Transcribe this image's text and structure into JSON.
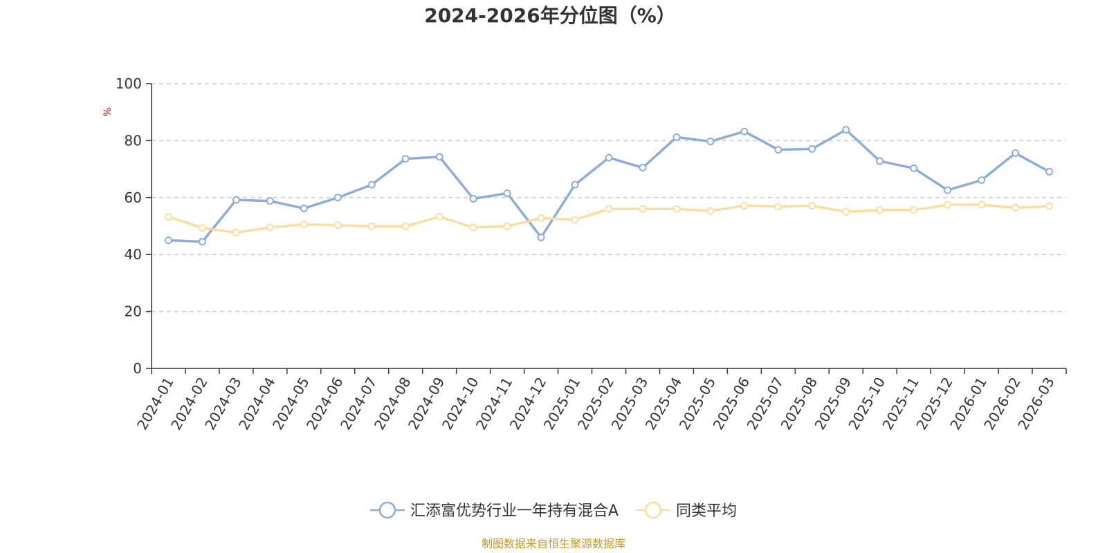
{
  "chart_data": {
    "type": "line",
    "title": "2024-2026年分位图（%）",
    "ylabel": "%",
    "ylim": [
      0,
      100
    ],
    "yticks": [
      0,
      20,
      40,
      60,
      80,
      100
    ],
    "grid": true,
    "legend_position": "bottom",
    "x": [
      "2024-01",
      "2024-02",
      "2024-03",
      "2024-04",
      "2024-05",
      "2024-06",
      "2024-07",
      "2024-08",
      "2024-09",
      "2024-10",
      "2024-11",
      "2024-12",
      "2025-01",
      "2025-02",
      "2025-03",
      "2025-04",
      "2025-05",
      "2025-06",
      "2025-07",
      "2025-08",
      "2025-09",
      "2025-10",
      "2025-11",
      "2025-12",
      "2026-01",
      "2026-02",
      "2026-03"
    ],
    "series": [
      {
        "name": "汇添富优势行业一年持有混合A",
        "color": "#8eacd8",
        "values": [
          45.0,
          44.5,
          59.2,
          58.8,
          56.2,
          60.0,
          64.5,
          73.6,
          74.3,
          59.6,
          61.5,
          46.0,
          64.5,
          74.0,
          70.5,
          81.2,
          79.7,
          83.2,
          76.8,
          77.1,
          83.8,
          72.8,
          70.3,
          62.6,
          66.1,
          75.6,
          69.1
        ]
      },
      {
        "name": "同类平均",
        "color": "#fddca0",
        "values": [
          53.2,
          49.4,
          47.7,
          49.5,
          50.6,
          50.3,
          49.9,
          49.9,
          53.3,
          49.5,
          49.9,
          52.8,
          52.2,
          56.0,
          56.0,
          56.0,
          55.3,
          57.2,
          56.8,
          57.1,
          55.0,
          55.6,
          55.6,
          57.5,
          57.5,
          56.4,
          57.0
        ]
      }
    ]
  },
  "source": {
    "text": "制图数据来自恒生聚源数据库",
    "color": "#c8962a"
  },
  "colors": {
    "axis": "#333333",
    "grid": "#cccccc",
    "unit": "#e60000"
  }
}
